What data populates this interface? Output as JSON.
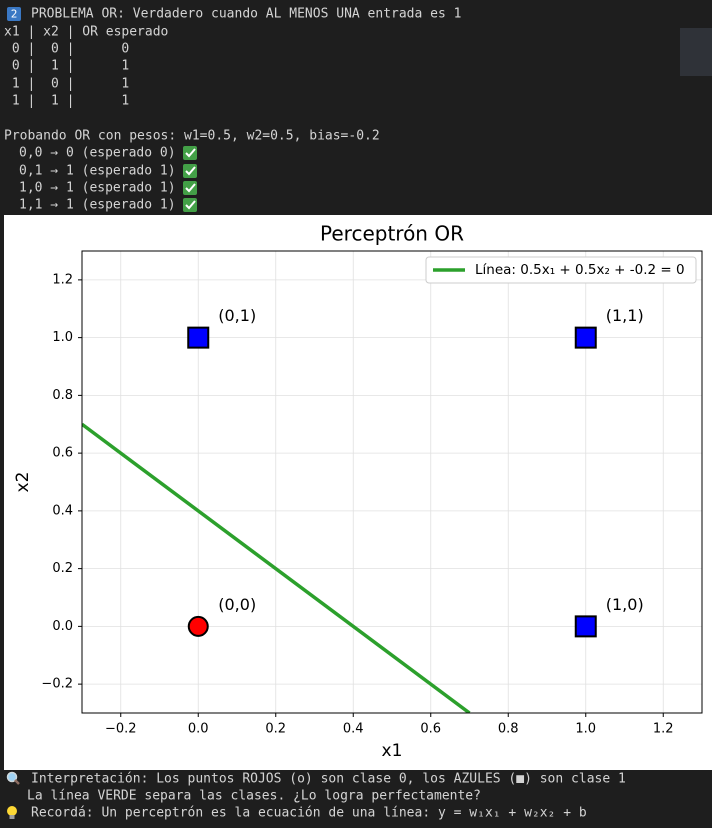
{
  "header": {
    "badge": "2",
    "text": "PROBLEMA OR: Verdadero cuando AL MENOS UNA entrada es 1"
  },
  "table": {
    "header": "x1 | x2 | OR esperado",
    "rows": [
      " 0 |  0 |      0",
      " 0 |  1 |      1",
      " 1 |  0 |      1",
      " 1 |  1 |      1"
    ]
  },
  "test_title": "Probando OR con pesos: w1=0.5, w2=0.5, bias=-0.2",
  "tests": [
    "0,0 → 0 (esperado 0)",
    "0,1 → 1 (esperado 1)",
    "1,0 → 1 (esperado 1)",
    "1,1 → 1 (esperado 1)"
  ],
  "chart_data": {
    "type": "scatter",
    "title": "Perceptrón OR",
    "xlabel": "x1",
    "ylabel": "x2",
    "xlim": [
      -0.3,
      1.3
    ],
    "ylim": [
      -0.3,
      1.3
    ],
    "xticks": [
      {
        "value": -0.2,
        "label": "−0.2"
      },
      {
        "value": 0,
        "label": "0.0"
      },
      0.2,
      0.4,
      0.6,
      0.8,
      {
        "value": 1,
        "label": "1.0"
      },
      1.2
    ],
    "yticks": [
      {
        "value": -0.2,
        "label": "−0.2"
      },
      {
        "value": 0,
        "label": "0.0"
      },
      0.2,
      0.4,
      0.6,
      0.8,
      {
        "value": 1,
        "label": "1.0"
      },
      1.2
    ],
    "grid": true,
    "legend": "upper right",
    "series": [
      {
        "color": "#ff0000",
        "marker": "circle",
        "x": [
          0
        ],
        "values": [
          0
        ]
      },
      {
        "color": "#0000ff",
        "marker": "square",
        "x": [
          0,
          1,
          1
        ],
        "values": [
          1,
          0,
          1
        ]
      },
      {
        "name": "Línea: 0.5x₁ + 0.5x₂ + -0.2 = 0",
        "color": "#2ca02c",
        "marker": "line",
        "x": [
          -0.3,
          0.7
        ],
        "values": [
          0.7,
          -0.3
        ]
      }
    ],
    "annotations": [
      {
        "text": "(0,0)",
        "x": 0,
        "y": 0
      },
      {
        "text": "(0,1)",
        "x": 0,
        "y": 1
      },
      {
        "text": "(1,0)",
        "x": 1,
        "y": 0
      },
      {
        "text": "(1,1)",
        "x": 1,
        "y": 1
      }
    ]
  },
  "notes": [
    "Interpretación: Los puntos ROJOS (o) son clase 0, los AZULES (■) son clase 1",
    "La línea VERDE separa las clases. ¿Lo logra perfectamente?",
    "Recordá: Un perceptrón es la ecuación de una línea: y = w₁x₁ + w₂x₂ + b"
  ]
}
